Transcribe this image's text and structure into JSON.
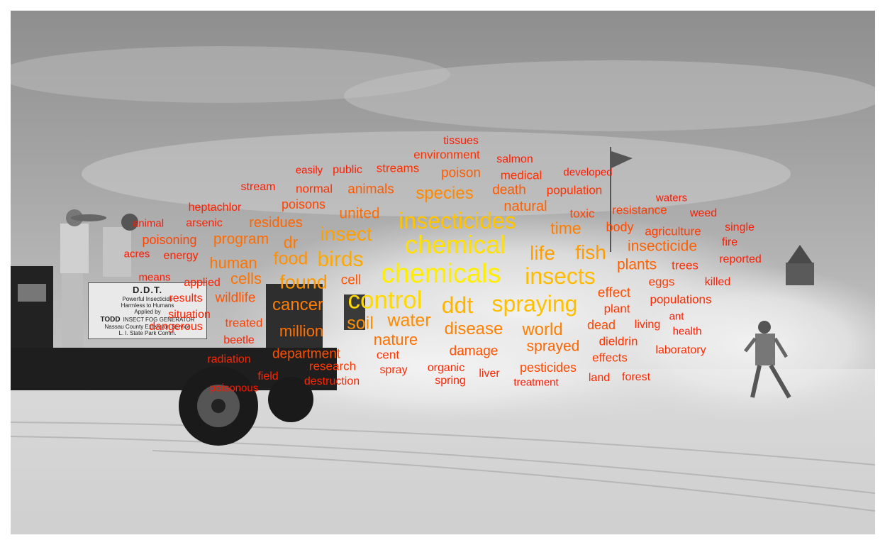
{
  "sign": {
    "line1": "D.D.T.",
    "line2": "Powerful Insecticide",
    "line3": "Harmless to Humans",
    "line4": "Applied by",
    "brand": "TODD",
    "line5": "INSECT FOG GENERATOR",
    "line6": "Nassau County Extension Service",
    "line7": "L. I. State Park Comm."
  },
  "colors": {
    "largest": "#ffee00",
    "large": "#ffc000",
    "medium": "#ff9900",
    "small": "#ff6a00",
    "smallest": "#ff1800"
  },
  "words": [
    {
      "text": "chemicals",
      "size": 38,
      "color": "#ffee00"
    },
    {
      "text": "chemical",
      "size": 36,
      "color": "#ffe000"
    },
    {
      "text": "control",
      "size": 35,
      "color": "#ffd800"
    },
    {
      "text": "insecticides",
      "size": 32,
      "color": "#ffc400"
    },
    {
      "text": "spraying",
      "size": 32,
      "color": "#ffbf00"
    },
    {
      "text": "insects",
      "size": 32,
      "color": "#ffbb00"
    },
    {
      "text": "ddt",
      "size": 32,
      "color": "#ffb400"
    },
    {
      "text": "birds",
      "size": 30,
      "color": "#ffa800"
    },
    {
      "text": "insect",
      "size": 28,
      "color": "#ff9f00"
    },
    {
      "text": "life",
      "size": 28,
      "color": "#ffa000"
    },
    {
      "text": "fish",
      "size": 28,
      "color": "#ff9c00"
    },
    {
      "text": "found",
      "size": 27,
      "color": "#ff9600"
    },
    {
      "text": "food",
      "size": 25,
      "color": "#ff9000"
    },
    {
      "text": "soil",
      "size": 25,
      "color": "#ff9000"
    },
    {
      "text": "water",
      "size": 25,
      "color": "#ff8c00"
    },
    {
      "text": "species",
      "size": 24,
      "color": "#ff8800"
    },
    {
      "text": "disease",
      "size": 24,
      "color": "#ff8000"
    },
    {
      "text": "world",
      "size": 24,
      "color": "#ff8000"
    },
    {
      "text": "cancer",
      "size": 24,
      "color": "#ff7d00"
    },
    {
      "text": "time",
      "size": 23,
      "color": "#ff7d00"
    },
    {
      "text": "dr",
      "size": 23,
      "color": "#ff7800"
    },
    {
      "text": "human",
      "size": 22,
      "color": "#ff7300"
    },
    {
      "text": "cells",
      "size": 22,
      "color": "#ff7300"
    },
    {
      "text": "million",
      "size": 22,
      "color": "#ff7000"
    },
    {
      "text": "nature",
      "size": 22,
      "color": "#ff7000"
    },
    {
      "text": "program",
      "size": 21,
      "color": "#ff6c00"
    },
    {
      "text": "united",
      "size": 21,
      "color": "#ff6c00"
    },
    {
      "text": "residues",
      "size": 20,
      "color": "#ff6400"
    },
    {
      "text": "sprayed",
      "size": 21,
      "color": "#ff6600"
    },
    {
      "text": "insecticide",
      "size": 21,
      "color": "#ff6000"
    },
    {
      "text": "plants",
      "size": 21,
      "color": "#ff6000"
    },
    {
      "text": "natural",
      "size": 20,
      "color": "#ff6000"
    },
    {
      "text": "animals",
      "size": 19,
      "color": "#ff5c00"
    },
    {
      "text": "poison",
      "size": 19,
      "color": "#ff5c00"
    },
    {
      "text": "death",
      "size": 19,
      "color": "#ff5800"
    },
    {
      "text": "wildlife",
      "size": 19,
      "color": "#ff5500"
    },
    {
      "text": "cell",
      "size": 19,
      "color": "#ff5500"
    },
    {
      "text": "department",
      "size": 19,
      "color": "#ff5000"
    },
    {
      "text": "damage",
      "size": 19,
      "color": "#ff5000"
    },
    {
      "text": "effect",
      "size": 19,
      "color": "#ff4c00"
    },
    {
      "text": "body",
      "size": 18,
      "color": "#ff4c00"
    },
    {
      "text": "dead",
      "size": 18,
      "color": "#ff4800"
    },
    {
      "text": "pesticides",
      "size": 18,
      "color": "#ff4800"
    },
    {
      "text": "poisons",
      "size": 18,
      "color": "#ff4400"
    },
    {
      "text": "poisoning",
      "size": 18,
      "color": "#ff4400"
    },
    {
      "text": "treated",
      "size": 17,
      "color": "#ff4000"
    },
    {
      "text": "toxic",
      "size": 17,
      "color": "#ff4000"
    },
    {
      "text": "agriculture",
      "size": 17,
      "color": "#ff3c00"
    },
    {
      "text": "resistance",
      "size": 17,
      "color": "#ff3c00"
    },
    {
      "text": "eggs",
      "size": 17,
      "color": "#ff3800"
    },
    {
      "text": "research",
      "size": 17,
      "color": "#ff3800"
    },
    {
      "text": "effects",
      "size": 17,
      "color": "#ff3800"
    },
    {
      "text": "dieldrin",
      "size": 17,
      "color": "#ff3400"
    },
    {
      "text": "plant",
      "size": 17,
      "color": "#ff3400"
    },
    {
      "text": "cent",
      "size": 17,
      "color": "#ff3400"
    },
    {
      "text": "normal",
      "size": 17,
      "color": "#ff3000"
    },
    {
      "text": "population",
      "size": 17,
      "color": "#ff3000"
    },
    {
      "text": "medical",
      "size": 17,
      "color": "#ff3000"
    },
    {
      "text": "streams",
      "size": 17,
      "color": "#ff3000"
    },
    {
      "text": "environment",
      "size": 17,
      "color": "#ff3000"
    },
    {
      "text": "populations",
      "size": 17,
      "color": "#ff2c00"
    },
    {
      "text": "trees",
      "size": 17,
      "color": "#ff2c00"
    },
    {
      "text": "living",
      "size": 16,
      "color": "#ff2c00"
    },
    {
      "text": "laboratory",
      "size": 16,
      "color": "#ff2c00"
    },
    {
      "text": "land",
      "size": 16,
      "color": "#ff2800"
    },
    {
      "text": "forest",
      "size": 16,
      "color": "#ff2800"
    },
    {
      "text": "liver",
      "size": 16,
      "color": "#ff2800"
    },
    {
      "text": "organic",
      "size": 16,
      "color": "#ff2800"
    },
    {
      "text": "spray",
      "size": 16,
      "color": "#ff2800"
    },
    {
      "text": "spring",
      "size": 16,
      "color": "#ff2400"
    },
    {
      "text": "destruction",
      "size": 16,
      "color": "#ff2400"
    },
    {
      "text": "field",
      "size": 16,
      "color": "#ff2400"
    },
    {
      "text": "radiation",
      "size": 16,
      "color": "#ff2400"
    },
    {
      "text": "beetle",
      "size": 16,
      "color": "#ff2400"
    },
    {
      "text": "dangerous",
      "size": 16,
      "color": "#ff2000"
    },
    {
      "text": "situation",
      "size": 16,
      "color": "#ff2000"
    },
    {
      "text": "results",
      "size": 16,
      "color": "#ff2000"
    },
    {
      "text": "applied",
      "size": 16,
      "color": "#ff2000"
    },
    {
      "text": "energy",
      "size": 16,
      "color": "#ff2000"
    },
    {
      "text": "arsenic",
      "size": 16,
      "color": "#ff2000"
    },
    {
      "text": "heptachlor",
      "size": 16,
      "color": "#ff2000"
    },
    {
      "text": "stream",
      "size": 16,
      "color": "#ff1c00"
    },
    {
      "text": "public",
      "size": 16,
      "color": "#ff1c00"
    },
    {
      "text": "tissues",
      "size": 16,
      "color": "#ff1c00"
    },
    {
      "text": "salmon",
      "size": 16,
      "color": "#ff1c00"
    },
    {
      "text": "reported",
      "size": 16,
      "color": "#ff1c00"
    },
    {
      "text": "killed",
      "size": 16,
      "color": "#ff1c00"
    },
    {
      "text": "weed",
      "size": 16,
      "color": "#ff1c00"
    },
    {
      "text": "single",
      "size": 16,
      "color": "#ff1c00"
    },
    {
      "text": "fire",
      "size": 16,
      "color": "#ff1c00"
    },
    {
      "text": "treatment",
      "size": 15,
      "color": "#ff1800"
    },
    {
      "text": "developed",
      "size": 15,
      "color": "#ff1800"
    },
    {
      "text": "waters",
      "size": 15,
      "color": "#ff1800"
    },
    {
      "text": "animal",
      "size": 15,
      "color": "#ff1800"
    },
    {
      "text": "acres",
      "size": 15,
      "color": "#ff1800"
    },
    {
      "text": "means",
      "size": 15,
      "color": "#ff1800"
    },
    {
      "text": "easily",
      "size": 15,
      "color": "#ff1800"
    },
    {
      "text": "poisonous",
      "size": 15,
      "color": "#ff1800"
    },
    {
      "text": "ant",
      "size": 15,
      "color": "#ff1800"
    },
    {
      "text": "health",
      "size": 15,
      "color": "#ff1800"
    }
  ]
}
